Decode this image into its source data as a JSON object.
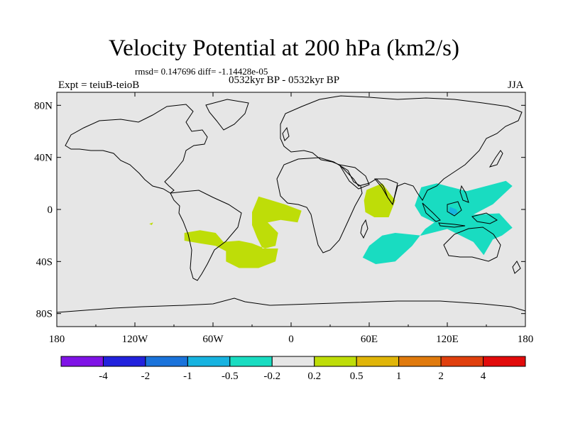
{
  "title": "Velocity Potential at 200 hPa (km2/s)",
  "subtitle_stats": "rmsd= 0.147696 diff= -1.14428e-05",
  "experiment_label": "Expt = teiuB-teioB",
  "period_label": "0532kyr BP - 0532kyr BP",
  "season_label": "JJA",
  "chart_data": {
    "type": "map-contour",
    "variable": "velocity potential",
    "level": "200 hPa",
    "units": "km2/s",
    "lon_range": [
      -180,
      180
    ],
    "lat_range": [
      -90,
      90
    ],
    "lon_ticks": [
      {
        "value": -180,
        "label": "180"
      },
      {
        "value": -120,
        "label": "120W"
      },
      {
        "value": -60,
        "label": "60W"
      },
      {
        "value": 0,
        "label": "0"
      },
      {
        "value": 60,
        "label": "60E"
      },
      {
        "value": 120,
        "label": "120E"
      },
      {
        "value": 180,
        "label": "180"
      }
    ],
    "lat_ticks": [
      {
        "value": 80,
        "label": "80N"
      },
      {
        "value": 40,
        "label": "40N"
      },
      {
        "value": 0,
        "label": "0"
      },
      {
        "value": -40,
        "label": "40S"
      },
      {
        "value": -80,
        "label": "80S"
      }
    ],
    "colorbar": {
      "colors": [
        "#7f13e6",
        "#2222dd",
        "#1a73db",
        "#17b3e0",
        "#19dcc1",
        "#e6e6e6",
        "#bedd08",
        "#e0b508",
        "#e07a0d",
        "#e03f0d",
        "#e20b0b"
      ],
      "labels": [
        "-4",
        "-2",
        "-1",
        "-0.5",
        "-0.2",
        "0.2",
        "0.5",
        "1",
        "2",
        "4"
      ]
    },
    "regions": [
      {
        "name": "tropical-atlantic-positive",
        "level_min": 0.2,
        "level_max": 0.5,
        "color": "#bedd08",
        "polygon": [
          [
            -25,
            10
          ],
          [
            -5,
            4
          ],
          [
            8,
            -1
          ],
          [
            5,
            -10
          ],
          [
            -8,
            -8
          ],
          [
            -18,
            -10
          ],
          [
            -10,
            -18
          ],
          [
            -12,
            -28
          ],
          [
            -20,
            -30
          ],
          [
            -30,
            -26
          ],
          [
            -40,
            -24
          ],
          [
            -52,
            -25
          ],
          [
            -58,
            -18
          ],
          [
            -70,
            -16
          ],
          [
            -82,
            -18
          ],
          [
            -82,
            -24
          ],
          [
            -70,
            -26
          ],
          [
            -58,
            -28
          ],
          [
            -50,
            -32
          ],
          [
            -50,
            -40
          ],
          [
            -40,
            -45
          ],
          [
            -25,
            -45
          ],
          [
            -12,
            -40
          ],
          [
            -10,
            -30
          ],
          [
            -22,
            -30
          ],
          [
            -26,
            -22
          ],
          [
            -30,
            -12
          ],
          [
            -30,
            -2
          ]
        ]
      },
      {
        "name": "arabian-sea-positive",
        "level_min": 0.2,
        "level_max": 0.5,
        "color": "#bedd08",
        "polygon": [
          [
            58,
            15
          ],
          [
            70,
            20
          ],
          [
            80,
            7
          ],
          [
            75,
            -6
          ],
          [
            64,
            -6
          ],
          [
            57,
            -2
          ],
          [
            56,
            7
          ]
        ]
      },
      {
        "name": "east-pacific-positive",
        "level_min": 0.2,
        "level_max": 0.5,
        "color": "#bedd08",
        "polygon": [
          [
            -109,
            -11
          ],
          [
            -106,
            -10
          ],
          [
            -107,
            -12
          ]
        ]
      },
      {
        "name": "maritime-continent-negative",
        "level_min": -0.5,
        "level_max": -0.2,
        "color": "#19dcc1",
        "polygon": [
          [
            100,
            17
          ],
          [
            112,
            20
          ],
          [
            135,
            14
          ],
          [
            165,
            22
          ],
          [
            170,
            18
          ],
          [
            155,
            4
          ],
          [
            140,
            -4
          ],
          [
            160,
            -3
          ],
          [
            170,
            -14
          ],
          [
            162,
            -20
          ],
          [
            155,
            -23
          ],
          [
            148,
            -35
          ],
          [
            140,
            -25
          ],
          [
            120,
            -15
          ],
          [
            100,
            -20
          ],
          [
            80,
            -18
          ],
          [
            70,
            -20
          ],
          [
            60,
            -28
          ],
          [
            55,
            -37
          ],
          [
            65,
            -42
          ],
          [
            80,
            -40
          ],
          [
            93,
            -28
          ],
          [
            103,
            -15
          ],
          [
            110,
            -10
          ],
          [
            100,
            -5
          ],
          [
            95,
            3
          ]
        ]
      },
      {
        "name": "indonesia-core-negative",
        "level_min": -1,
        "level_max": -0.5,
        "color": "#17b3e0",
        "polygon": [
          [
            122,
            2
          ],
          [
            127,
            0
          ],
          [
            128,
            -3
          ],
          [
            124,
            -4
          ],
          [
            121,
            -2
          ]
        ]
      }
    ]
  }
}
